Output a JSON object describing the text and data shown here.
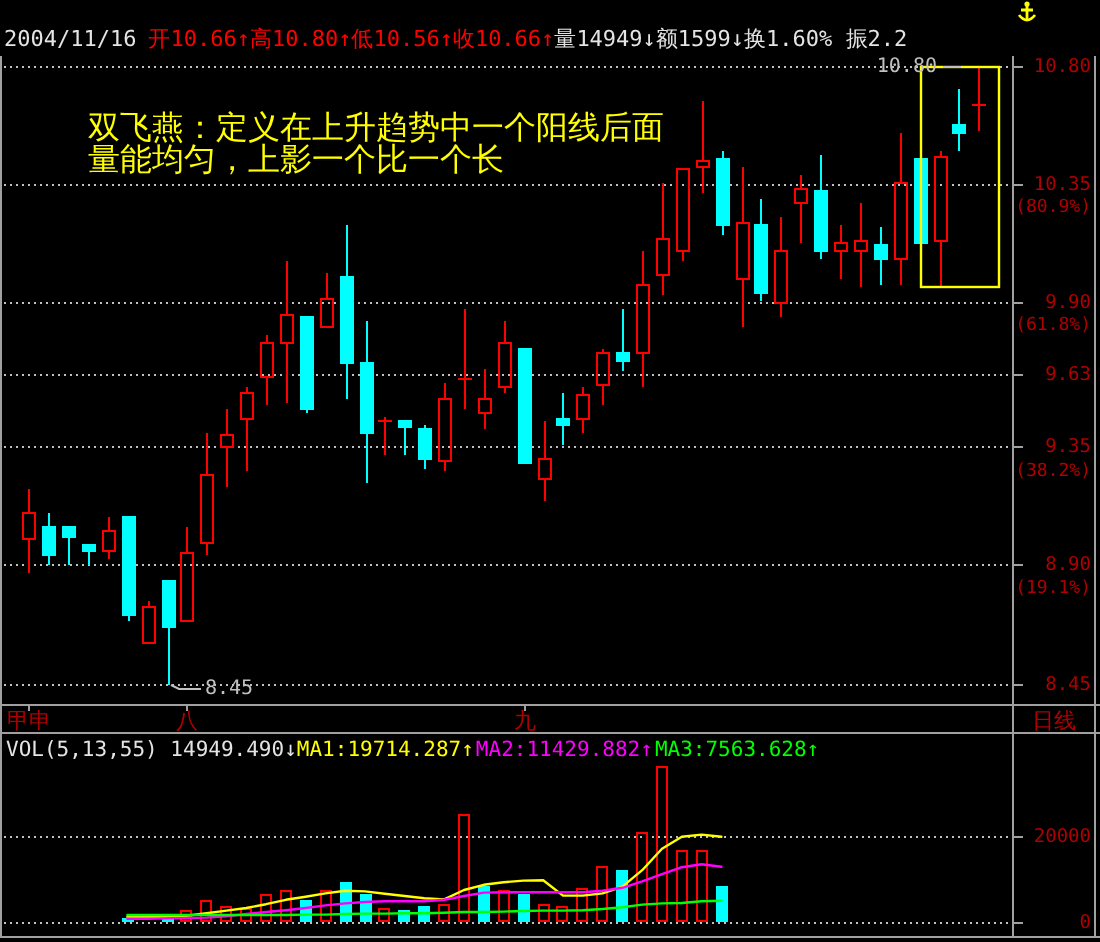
{
  "chart_data": [
    {
      "type": "candlestick",
      "title": "2004/11/16",
      "subtitle": "开10.66↑高10.80↑低10.56↑收10.66↑",
      "xlabel": "日线",
      "categories": [
        "甲申",
        null,
        null,
        null,
        null,
        null,
        null,
        null,
        "八",
        null,
        null,
        null,
        null,
        null,
        null,
        null,
        null,
        null,
        null,
        null,
        null,
        null,
        null,
        null,
        null,
        "九",
        null,
        null,
        null,
        null,
        null,
        null,
        null,
        null,
        null,
        null,
        null,
        null,
        null,
        null,
        null,
        null,
        null,
        null,
        null,
        null,
        null,
        null,
        null
      ],
      "ohlc": [
        [
          9.0,
          9.19,
          8.87,
          9.1
        ],
        [
          9.05,
          9.1,
          8.9,
          8.94
        ],
        [
          9.05,
          9.05,
          8.9,
          9.01
        ],
        [
          8.98,
          8.98,
          8.9,
          8.96
        ],
        [
          8.96,
          9.09,
          8.93,
          9.03
        ],
        [
          9.09,
          9.09,
          8.69,
          8.71
        ],
        [
          8.61,
          8.77,
          8.61,
          8.74
        ],
        [
          8.84,
          8.84,
          8.45,
          8.67
        ],
        [
          8.69,
          9.05,
          8.69,
          8.95
        ],
        [
          8.99,
          9.41,
          8.94,
          9.25
        ],
        [
          9.35,
          9.5,
          9.2,
          9.4
        ],
        [
          9.46,
          9.58,
          9.26,
          9.56
        ],
        [
          9.62,
          9.78,
          9.51,
          9.75
        ],
        [
          9.75,
          10.06,
          9.52,
          9.86
        ],
        [
          9.85,
          9.85,
          9.48,
          9.5
        ],
        [
          9.81,
          10.02,
          9.81,
          9.92
        ],
        [
          10.0,
          10.2,
          9.54,
          9.67
        ],
        [
          9.67,
          9.83,
          9.22,
          9.41
        ],
        [
          9.45,
          9.47,
          9.32,
          9.45
        ],
        [
          9.45,
          9.45,
          9.32,
          9.43
        ],
        [
          9.42,
          9.44,
          9.27,
          9.31
        ],
        [
          9.3,
          9.6,
          9.26,
          9.54
        ],
        [
          9.61,
          9.88,
          9.5,
          9.61
        ],
        [
          9.48,
          9.65,
          9.42,
          9.54
        ],
        [
          9.58,
          9.83,
          9.56,
          9.75
        ],
        [
          9.73,
          9.73,
          9.29,
          9.29
        ],
        [
          9.23,
          9.45,
          9.15,
          9.31
        ],
        [
          9.46,
          9.56,
          9.36,
          9.44
        ],
        [
          9.46,
          9.58,
          9.41,
          9.55
        ],
        [
          9.59,
          9.73,
          9.51,
          9.71
        ],
        [
          9.71,
          9.88,
          9.64,
          9.68
        ],
        [
          9.71,
          10.1,
          9.58,
          9.97
        ],
        [
          10.01,
          10.36,
          9.93,
          10.15
        ],
        [
          10.1,
          10.41,
          10.06,
          10.41
        ],
        [
          10.42,
          10.67,
          10.32,
          10.44
        ],
        [
          10.45,
          10.48,
          10.16,
          10.2
        ],
        [
          9.99,
          10.42,
          9.81,
          10.21
        ],
        [
          10.2,
          10.3,
          9.91,
          9.94
        ],
        [
          9.9,
          10.23,
          9.85,
          10.1
        ],
        [
          10.28,
          10.39,
          10.13,
          10.34
        ],
        [
          10.33,
          10.47,
          10.07,
          10.1
        ],
        [
          10.1,
          10.2,
          9.99,
          10.13
        ],
        [
          10.1,
          10.28,
          9.96,
          10.14
        ],
        [
          10.12,
          10.19,
          9.97,
          10.07
        ],
        [
          10.07,
          10.55,
          9.97,
          10.36
        ],
        [
          10.45,
          10.45,
          10.13,
          10.13
        ],
        [
          10.14,
          10.48,
          9.96,
          10.46
        ],
        [
          10.58,
          10.72,
          10.48,
          10.55
        ],
        [
          10.66,
          10.8,
          10.56,
          10.66
        ]
      ],
      "colors": [
        "#ff0000",
        "#00ffff",
        "#00ffff",
        "#00ffff",
        "#ff0000",
        "#00ffff",
        "#ff0000",
        "#00ffff",
        "#ff0000",
        "#ff0000",
        "#ff0000",
        "#ff0000",
        "#ff0000",
        "#ff0000",
        "#00ffff",
        "#ff0000",
        "#00ffff",
        "#00ffff",
        "#ff0000",
        "#00ffff",
        "#00ffff",
        "#ff0000",
        "#ff0000",
        "#ff0000",
        "#ff0000",
        "#00ffff",
        "#ff0000",
        "#00ffff",
        "#ff0000",
        "#ff0000",
        "#00ffff",
        "#ff0000",
        "#ff0000",
        "#ff0000",
        "#ff0000",
        "#00ffff",
        "#ff0000",
        "#00ffff",
        "#ff0000",
        "#ff0000",
        "#00ffff",
        "#ff0000",
        "#ff0000",
        "#00ffff",
        "#ff0000",
        "#00ffff",
        "#ff0000",
        "#00ffff",
        "#ff0000"
      ],
      "ylim": [
        8.37,
        10.84
      ],
      "yticks": [
        8.45,
        {
          "value": 8.9,
          "label": "8.90"
        },
        9.35,
        9.63,
        {
          "value": 9.9,
          "label": "9.90"
        },
        10.35,
        {
          "value": 10.8,
          "label": "10.80"
        }
      ],
      "y2lim": [
        0.49,
        105.6
      ],
      "y2ticks": [
        {
          "value": 19.1,
          "label": "(19.1%)"
        },
        {
          "value": 38.2,
          "label": "(38.2%)"
        },
        {
          "value": 61.8,
          "label": "(61.8%)"
        },
        {
          "value": 80.9,
          "label": "(80.9%)"
        }
      ],
      "grid": "y",
      "annotations": [
        "量14949↓额1599↓换1.60% 振2.2",
        "双飞燕：定义在上升趋势中一个阳线后面量能均匀，上影一个比一个长",
        "10.80",
        "8.45"
      ]
    },
    {
      "type": "bar",
      "title": "VOL(5,13,55) 14949.490↓",
      "categories": [
        null,
        null,
        null,
        null,
        null,
        null,
        null,
        null,
        null,
        null,
        null,
        null,
        null,
        null,
        null,
        null,
        null,
        null,
        null,
        null,
        null,
        null,
        null,
        null,
        null,
        null,
        null,
        null,
        null,
        null,
        null,
        null,
        null,
        null,
        null,
        null,
        null,
        null,
        null,
        null,
        null,
        null,
        null,
        null,
        null,
        null,
        null,
        null,
        null
      ],
      "series": [
        {
          "type": "bar",
          "colors": [
            null,
            null,
            null,
            null,
            null,
            "#00ffff",
            null,
            "#00ffff",
            "#ff0000",
            "#ff0000",
            "#ff0000",
            "#ff0000",
            "#ff0000",
            "#ff0000",
            "#00ffff",
            "#ff0000",
            "#00ffff",
            "#00ffff",
            "#ff0000",
            "#00ffff",
            "#00ffff",
            "#ff0000",
            "#ff0000",
            "#00ffff",
            "#ff0000",
            "#00ffff",
            "#ff0000",
            "#ff0000",
            "#ff0000",
            "#ff0000",
            "#00ffff",
            "#ff0000",
            "#ff0000",
            "#ff0000",
            "#ff0000",
            "#00ffff",
            null,
            null,
            null,
            null,
            null,
            null,
            null,
            null,
            null,
            null,
            null,
            null,
            null
          ],
          "values": [
            null,
            null,
            null,
            null,
            null,
            800,
            null,
            800,
            2500,
            4800,
            3400,
            3100,
            6400,
            7100,
            5100,
            7100,
            9200,
            6400,
            3100,
            2500,
            3600,
            3900,
            24800,
            8200,
            7100,
            6400,
            3900,
            3400,
            7600,
            12700,
            11900,
            20800,
            36000,
            16400,
            16400,
            8200,
            null,
            null,
            null,
            null,
            null,
            null,
            null,
            null,
            null,
            null,
            null,
            null,
            null
          ]
        },
        {
          "type": "line",
          "name": "MA1:19714.287↑",
          "color": "#ffff00",
          "values": [
            null,
            null,
            null,
            null,
            null,
            1000,
            1000,
            1100,
            1300,
            1900,
            2500,
            3100,
            4000,
            5000,
            5700,
            6500,
            7100,
            7000,
            6400,
            5900,
            5400,
            5100,
            7300,
            8500,
            9100,
            9500,
            9600,
            6000,
            6000,
            6500,
            8100,
            11900,
            16900,
            19700,
            20200,
            19700,
            null,
            null,
            null,
            null,
            null,
            null,
            null,
            null,
            null,
            null,
            null,
            null,
            null
          ]
        },
        {
          "type": "line",
          "name": "MA2:11429.882↑",
          "color": "#ff00ff",
          "values": [
            null,
            null,
            null,
            null,
            null,
            600,
            600,
            700,
            800,
            900,
            1200,
            1700,
            2200,
            2600,
            3100,
            3700,
            4200,
            4500,
            4700,
            4700,
            4700,
            5000,
            5900,
            6700,
            6800,
            6800,
            6800,
            6800,
            6800,
            7100,
            7800,
            9300,
            11000,
            12600,
            13300,
            12700,
            null,
            null,
            null,
            null,
            null,
            null,
            null,
            null,
            null,
            null,
            null,
            null,
            null
          ]
        },
        {
          "type": "line",
          "name": "MA3:7563.628↑",
          "color": "#00ff00",
          "values": [
            null,
            null,
            null,
            null,
            null,
            1500,
            1500,
            1500,
            1500,
            1500,
            1500,
            1500,
            1500,
            1500,
            1600,
            1600,
            1700,
            1800,
            1800,
            1900,
            1900,
            2000,
            2200,
            2200,
            2300,
            2400,
            2500,
            2500,
            2600,
            2900,
            3300,
            3900,
            4200,
            4300,
            4700,
            4800,
            null,
            null,
            null,
            null,
            null,
            null,
            null,
            null,
            null,
            null,
            null,
            null,
            null
          ]
        }
      ],
      "ylim": [
        -3400,
        43600
      ],
      "yticks": [
        0,
        20000
      ],
      "grid": "y",
      "legend": "top left",
      "tick_labels": "y"
    }
  ]
}
